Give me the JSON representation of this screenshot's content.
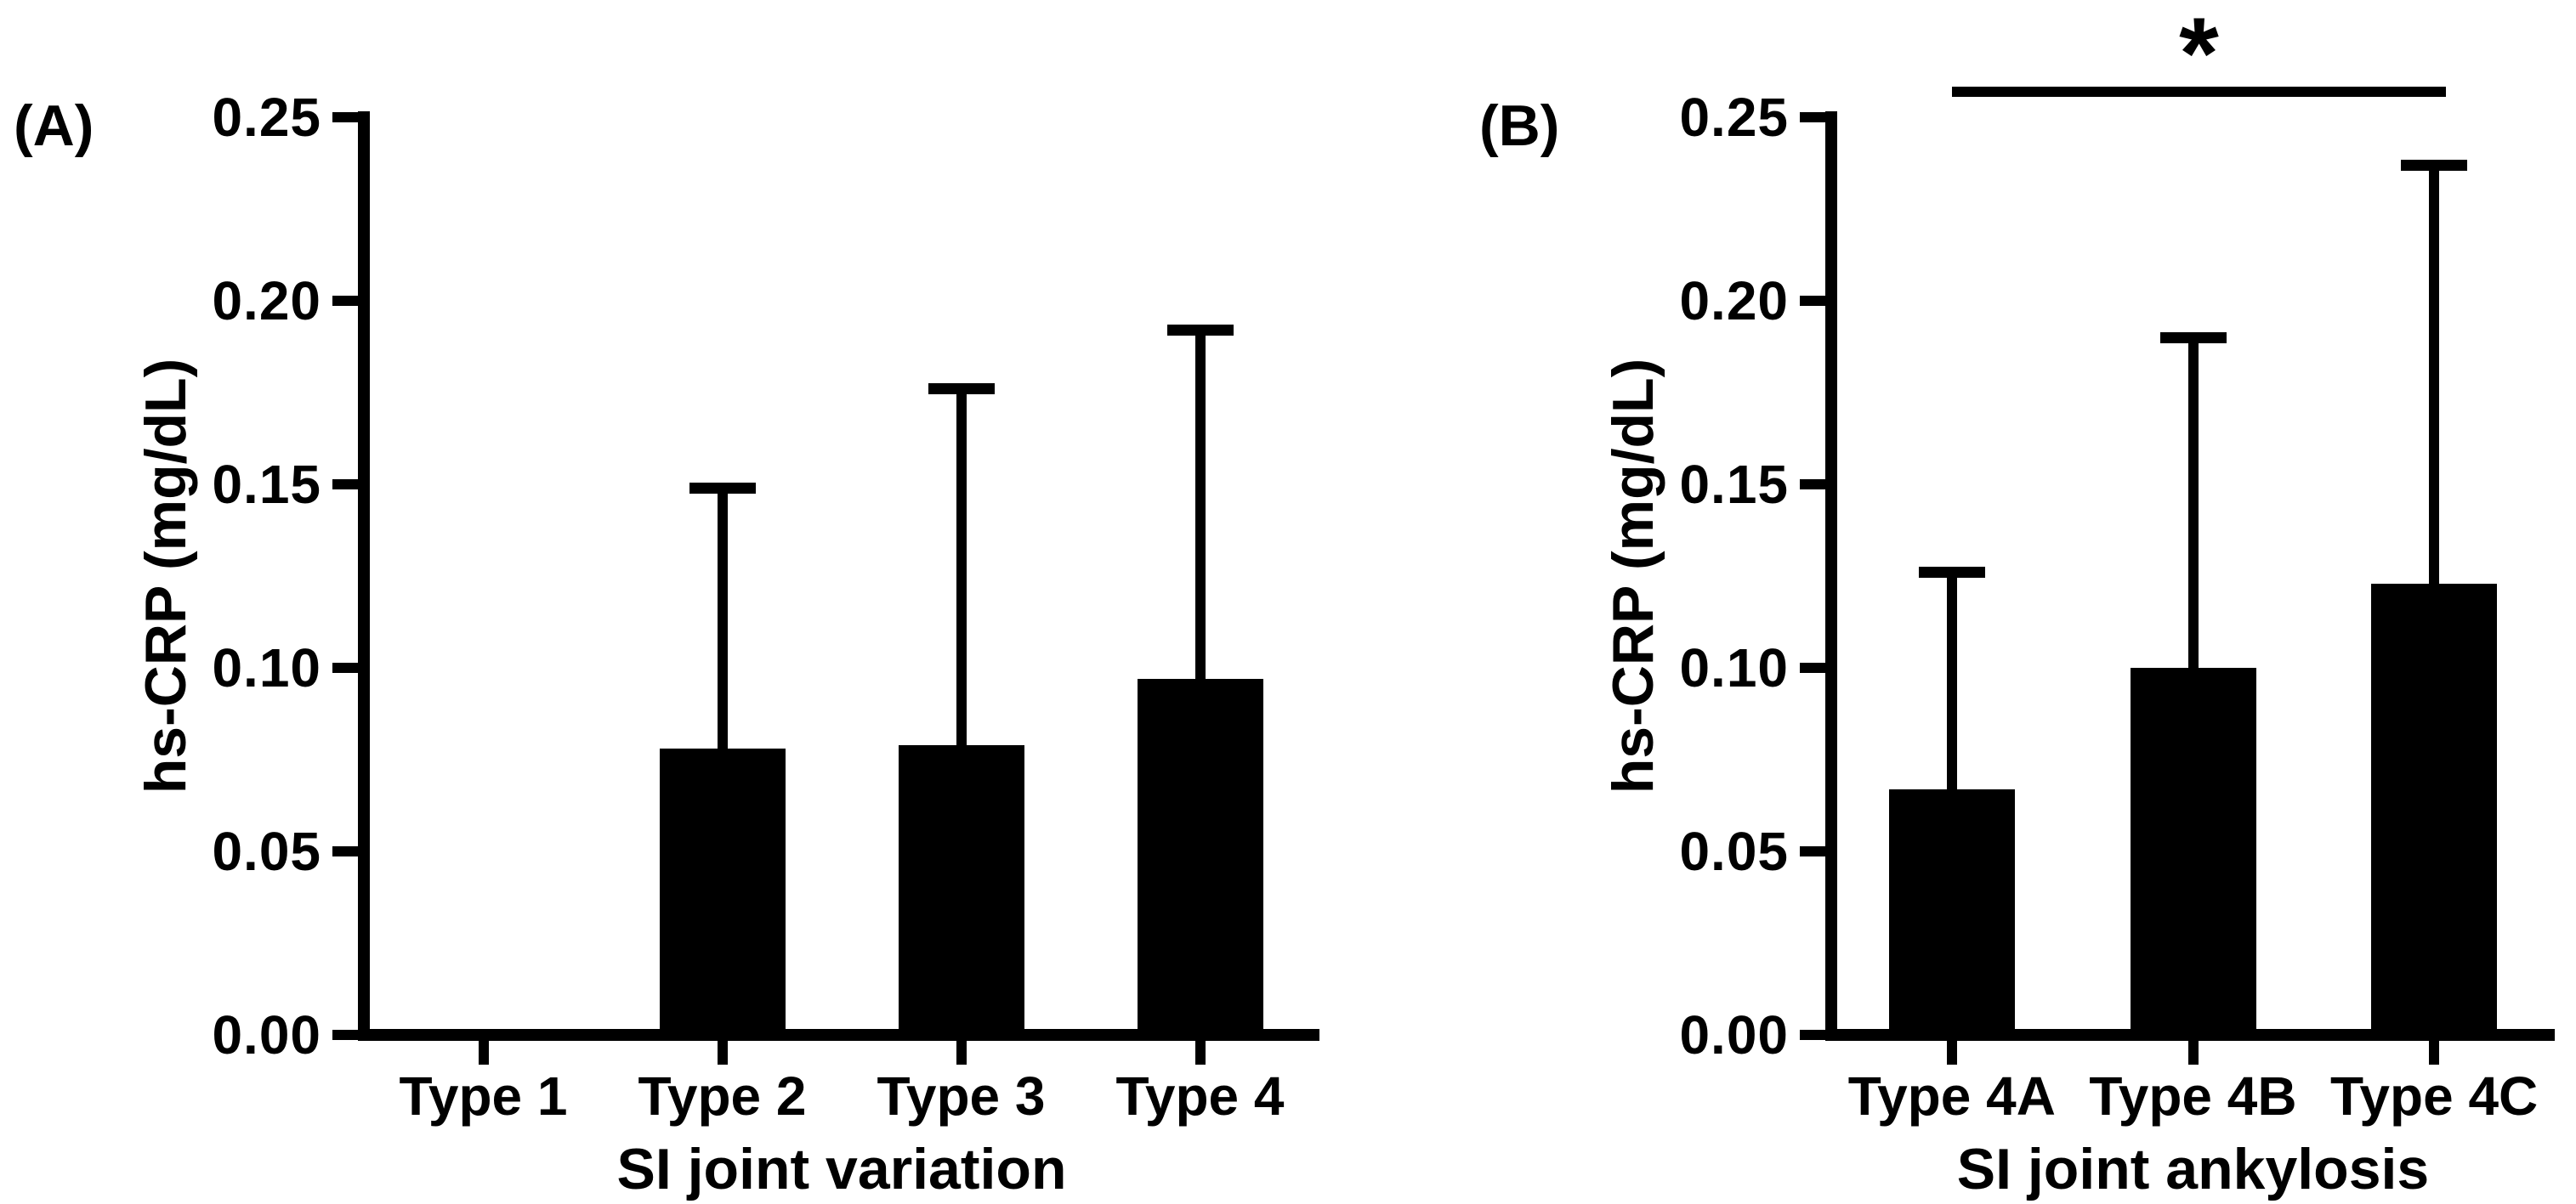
{
  "figure": {
    "background": "#ffffff",
    "ink_color": "#000000"
  },
  "chart_data": [
    {
      "type": "bar",
      "panel_label": "(A)",
      "title": "",
      "xlabel": "SI joint variation",
      "ylabel": "hs-CRP (mg/dL)",
      "ylim": [
        0,
        0.25
      ],
      "ytick_labels": [
        "0.00",
        "0.05",
        "0.10",
        "0.15",
        "0.20",
        "0.25"
      ],
      "ytick_values": [
        0,
        0.05,
        0.1,
        0.15,
        0.2,
        0.25
      ],
      "categories": [
        "Type 1",
        "Type 2",
        "Type 3",
        "Type 4"
      ],
      "values": [
        0,
        0.078,
        0.079,
        0.097
      ],
      "error_bar_tops": [
        null,
        0.149,
        0.176,
        0.192
      ],
      "bar_color": "#000000",
      "grid": false,
      "legend": "none",
      "significance": null
    },
    {
      "type": "bar",
      "panel_label": "(B)",
      "title": "",
      "xlabel": "SI joint ankylosis",
      "ylabel": "hs-CRP (mg/dL)",
      "ylim": [
        0,
        0.25
      ],
      "ytick_labels": [
        "0.00",
        "0.05",
        "0.10",
        "0.15",
        "0.20",
        "0.25"
      ],
      "ytick_values": [
        0,
        0.05,
        0.1,
        0.15,
        0.2,
        0.25
      ],
      "categories": [
        "Type 4A",
        "Type 4B",
        "Type 4C"
      ],
      "values": [
        0.067,
        0.1,
        0.123
      ],
      "error_bar_tops": [
        0.126,
        0.19,
        0.237
      ],
      "bar_color": "#000000",
      "grid": false,
      "legend": "none",
      "significance": {
        "from_category": "Type 4A",
        "to_category": "Type 4C",
        "label": "*"
      }
    }
  ]
}
